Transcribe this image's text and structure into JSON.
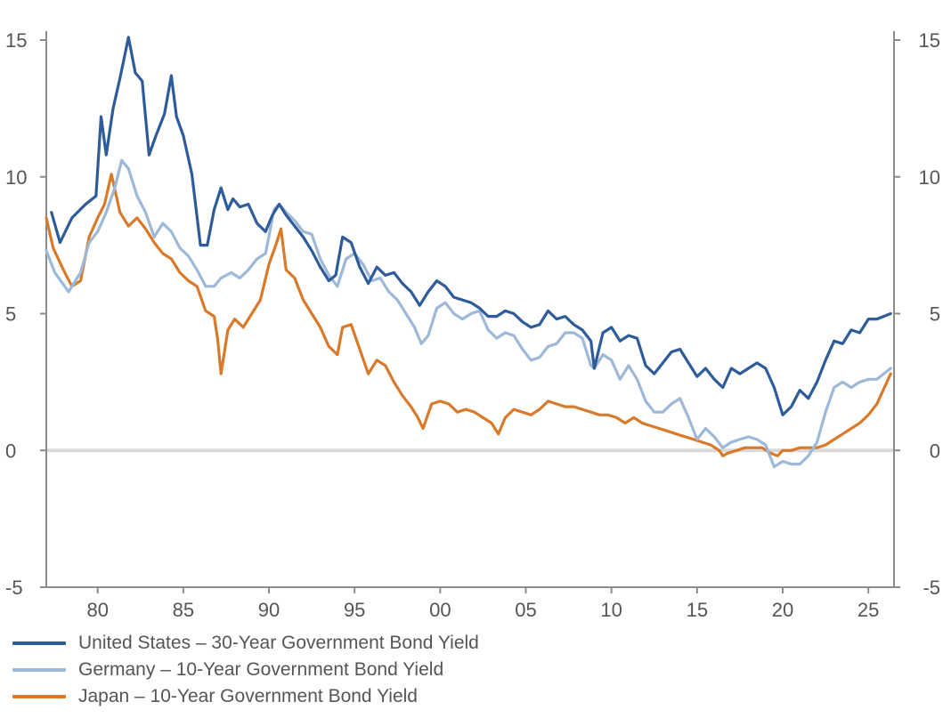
{
  "chart_data": {
    "type": "line",
    "title": "",
    "xlabel": "",
    "ylabel": "",
    "xlim": [
      1977.0,
      2026.5
    ],
    "ylim": [
      -5,
      15
    ],
    "grid": false,
    "y_ticks": [
      -5,
      0,
      5,
      10,
      15
    ],
    "y_tick_labels": [
      "-5",
      "0",
      "5",
      "10",
      "15"
    ],
    "x_ticks": [
      1980,
      1985,
      1990,
      1995,
      2000,
      2005,
      2010,
      2015,
      2020,
      2025
    ],
    "x_tick_labels": [
      "80",
      "85",
      "90",
      "95",
      "00",
      "05",
      "10",
      "15",
      "20",
      "25"
    ],
    "zero_line_color": "#d9d9d9",
    "legend_position": "bottom-left",
    "series": [
      {
        "name": "United States – 30-Year Government Bond Yield",
        "color": "#2e5c9a",
        "x": [
          1977.3,
          1977.8,
          1978.5,
          1979.3,
          1979.9,
          1980.2,
          1980.5,
          1980.9,
          1981.3,
          1981.8,
          1982.2,
          1982.6,
          1983.0,
          1983.4,
          1983.9,
          1984.3,
          1984.6,
          1985.0,
          1985.5,
          1986.0,
          1986.4,
          1986.8,
          1987.2,
          1987.6,
          1987.9,
          1988.3,
          1988.8,
          1989.3,
          1989.8,
          1990.2,
          1990.6,
          1991.0,
          1991.5,
          1992.0,
          1992.5,
          1993.0,
          1993.5,
          1993.9,
          1994.3,
          1994.8,
          1995.3,
          1995.8,
          1996.3,
          1996.8,
          1997.3,
          1997.8,
          1998.3,
          1998.8,
          1999.3,
          1999.8,
          2000.3,
          2000.8,
          2001.3,
          2001.8,
          2002.3,
          2002.8,
          2003.3,
          2003.8,
          2004.3,
          2004.8,
          2005.3,
          2005.8,
          2006.3,
          2006.8,
          2007.3,
          2007.8,
          2008.3,
          2008.8,
          2009.0,
          2009.5,
          2010.0,
          2010.5,
          2011.0,
          2011.5,
          2012.0,
          2012.5,
          2013.0,
          2013.5,
          2014.0,
          2014.5,
          2015.0,
          2015.5,
          2016.0,
          2016.5,
          2017.0,
          2017.5,
          2018.0,
          2018.5,
          2019.0,
          2019.5,
          2020.0,
          2020.5,
          2021.0,
          2021.5,
          2022.0,
          2022.5,
          2023.0,
          2023.5,
          2024.0,
          2024.5,
          2025.0,
          2025.5,
          2026.3
        ],
        "values": [
          8.7,
          7.6,
          8.5,
          9.0,
          9.3,
          12.2,
          10.8,
          12.5,
          13.6,
          15.1,
          13.8,
          13.5,
          10.8,
          11.5,
          12.3,
          13.7,
          12.2,
          11.5,
          10.1,
          7.5,
          7.5,
          8.8,
          9.6,
          8.8,
          9.2,
          8.9,
          9.0,
          8.3,
          8.0,
          8.6,
          9.0,
          8.6,
          8.2,
          7.8,
          7.3,
          6.7,
          6.2,
          6.4,
          7.8,
          7.6,
          6.7,
          6.1,
          6.7,
          6.4,
          6.5,
          6.1,
          5.8,
          5.3,
          5.8,
          6.2,
          6.0,
          5.6,
          5.5,
          5.4,
          5.2,
          4.9,
          4.9,
          5.1,
          5.0,
          4.7,
          4.5,
          4.6,
          5.1,
          4.8,
          4.9,
          4.6,
          4.4,
          4.0,
          3.0,
          4.3,
          4.5,
          4.0,
          4.2,
          4.1,
          3.1,
          2.8,
          3.2,
          3.6,
          3.7,
          3.2,
          2.7,
          3.0,
          2.6,
          2.3,
          3.0,
          2.8,
          3.0,
          3.2,
          3.0,
          2.3,
          1.3,
          1.6,
          2.2,
          1.9,
          2.5,
          3.3,
          4.0,
          3.9,
          4.4,
          4.3,
          4.8,
          4.8,
          5.0
        ]
      },
      {
        "name": "Germany – 10-Year Government Bond Yield",
        "color": "#9db8d8",
        "x": [
          1977.0,
          1977.5,
          1978.3,
          1979.0,
          1979.5,
          1980.0,
          1980.5,
          1981.0,
          1981.4,
          1981.8,
          1982.3,
          1982.8,
          1983.3,
          1983.8,
          1984.3,
          1984.8,
          1985.3,
          1985.8,
          1986.3,
          1986.8,
          1987.2,
          1987.8,
          1988.3,
          1988.8,
          1989.3,
          1989.8,
          1990.3,
          1990.6,
          1991.0,
          1991.5,
          1992.0,
          1992.5,
          1993.0,
          1993.5,
          1994.0,
          1994.5,
          1995.0,
          1995.5,
          1996.0,
          1996.5,
          1997.0,
          1997.5,
          1998.0,
          1998.5,
          1998.9,
          1999.3,
          1999.8,
          2000.3,
          2000.8,
          2001.3,
          2001.8,
          2002.3,
          2002.8,
          2003.3,
          2003.8,
          2004.3,
          2004.8,
          2005.3,
          2005.8,
          2006.3,
          2006.8,
          2007.3,
          2007.8,
          2008.3,
          2008.8,
          2009.0,
          2009.5,
          2010.0,
          2010.5,
          2011.0,
          2011.5,
          2012.0,
          2012.5,
          2013.0,
          2013.5,
          2014.0,
          2014.5,
          2015.0,
          2015.5,
          2016.0,
          2016.5,
          2017.0,
          2017.5,
          2018.0,
          2018.5,
          2019.0,
          2019.5,
          2020.0,
          2020.5,
          2021.0,
          2021.5,
          2022.0,
          2022.5,
          2023.0,
          2023.5,
          2024.0,
          2024.5,
          2025.0,
          2025.5,
          2026.3
        ],
        "values": [
          7.3,
          6.5,
          5.8,
          6.5,
          7.6,
          8.0,
          8.7,
          9.6,
          10.6,
          10.3,
          9.3,
          8.7,
          7.8,
          8.3,
          8.0,
          7.4,
          7.1,
          6.6,
          6.0,
          6.0,
          6.3,
          6.5,
          6.3,
          6.6,
          7.0,
          7.2,
          8.8,
          9.0,
          8.7,
          8.4,
          8.0,
          7.9,
          7.0,
          6.4,
          6.0,
          7.0,
          7.2,
          6.8,
          6.2,
          6.3,
          5.8,
          5.5,
          5.0,
          4.5,
          3.9,
          4.2,
          5.2,
          5.4,
          5.0,
          4.8,
          5.0,
          5.1,
          4.4,
          4.1,
          4.3,
          4.2,
          3.7,
          3.3,
          3.4,
          3.8,
          3.9,
          4.3,
          4.3,
          4.1,
          3.1,
          3.0,
          3.5,
          3.3,
          2.6,
          3.1,
          2.6,
          1.8,
          1.4,
          1.4,
          1.7,
          1.9,
          1.2,
          0.4,
          0.8,
          0.5,
          0.1,
          0.3,
          0.4,
          0.5,
          0.4,
          0.2,
          -0.6,
          -0.4,
          -0.5,
          -0.5,
          -0.2,
          0.3,
          1.4,
          2.3,
          2.5,
          2.3,
          2.5,
          2.6,
          2.6,
          3.0
        ]
      },
      {
        "name": "Japan – 10-Year Government Bond Yield",
        "color": "#d87a2a",
        "x": [
          1977.0,
          1977.4,
          1978.0,
          1978.5,
          1979.0,
          1979.5,
          1980.0,
          1980.4,
          1980.8,
          1981.3,
          1981.8,
          1982.3,
          1982.8,
          1983.3,
          1983.8,
          1984.3,
          1984.8,
          1985.3,
          1985.8,
          1986.3,
          1986.8,
          1987.0,
          1987.2,
          1987.6,
          1988.0,
          1988.5,
          1989.0,
          1989.5,
          1990.0,
          1990.4,
          1990.7,
          1991.0,
          1991.5,
          1992.0,
          1992.5,
          1993.0,
          1993.5,
          1994.0,
          1994.3,
          1994.8,
          1995.3,
          1995.8,
          1996.3,
          1996.8,
          1997.3,
          1997.8,
          1998.3,
          1998.7,
          1999.0,
          1999.5,
          2000.0,
          2000.5,
          2001.0,
          2001.5,
          2002.0,
          2002.5,
          2003.0,
          2003.4,
          2003.8,
          2004.3,
          2004.8,
          2005.3,
          2005.8,
          2006.3,
          2006.8,
          2007.3,
          2007.8,
          2008.3,
          2008.8,
          2009.3,
          2009.8,
          2010.3,
          2010.8,
          2011.3,
          2011.8,
          2012.3,
          2012.8,
          2013.3,
          2013.8,
          2014.3,
          2014.8,
          2015.3,
          2015.8,
          2016.3,
          2016.5,
          2016.8,
          2017.3,
          2017.8,
          2018.3,
          2018.8,
          2019.3,
          2019.7,
          2020.0,
          2020.5,
          2021.0,
          2021.5,
          2022.0,
          2022.5,
          2023.0,
          2023.5,
          2024.0,
          2024.5,
          2025.0,
          2025.5,
          2026.3
        ],
        "values": [
          8.5,
          7.4,
          6.6,
          6.0,
          6.2,
          7.8,
          8.5,
          9.0,
          10.1,
          8.7,
          8.2,
          8.5,
          8.1,
          7.6,
          7.2,
          7.0,
          6.5,
          6.2,
          6.0,
          5.1,
          4.9,
          4.1,
          2.8,
          4.4,
          4.8,
          4.5,
          5.0,
          5.5,
          6.8,
          7.5,
          8.1,
          6.6,
          6.3,
          5.5,
          5.0,
          4.5,
          3.8,
          3.5,
          4.5,
          4.6,
          3.7,
          2.8,
          3.3,
          3.1,
          2.5,
          2.0,
          1.6,
          1.2,
          0.8,
          1.7,
          1.8,
          1.7,
          1.4,
          1.5,
          1.4,
          1.2,
          1.0,
          0.6,
          1.2,
          1.5,
          1.4,
          1.3,
          1.5,
          1.8,
          1.7,
          1.6,
          1.6,
          1.5,
          1.4,
          1.3,
          1.3,
          1.2,
          1.0,
          1.2,
          1.0,
          0.9,
          0.8,
          0.7,
          0.6,
          0.5,
          0.4,
          0.3,
          0.2,
          0.0,
          -0.2,
          -0.1,
          0.0,
          0.1,
          0.1,
          0.1,
          -0.1,
          -0.2,
          0.0,
          0.0,
          0.1,
          0.1,
          0.1,
          0.2,
          0.4,
          0.6,
          0.8,
          1.0,
          1.3,
          1.7,
          2.8
        ]
      }
    ]
  }
}
